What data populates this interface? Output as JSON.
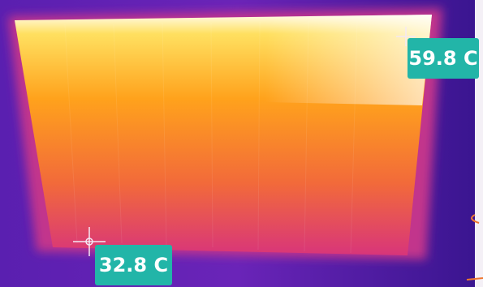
{
  "measurements": [
    {
      "label": "59.8 C"
    },
    {
      "label": "32.8 C"
    }
  ]
}
